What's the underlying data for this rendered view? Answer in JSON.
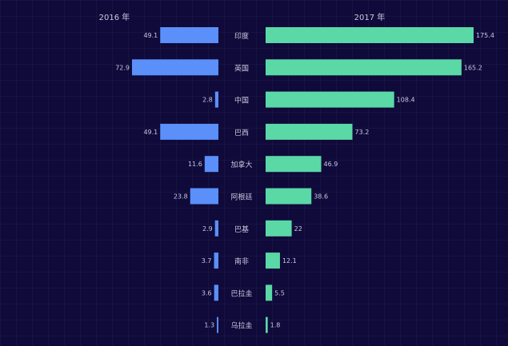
{
  "chart_data": {
    "type": "bar",
    "categories": [
      "印度",
      "英国",
      "中国",
      "巴西",
      "加拿大",
      "阿根廷",
      "巴基",
      "南非",
      "巴拉圭",
      "乌拉圭"
    ],
    "series": [
      {
        "name": "2016 年",
        "values": [
          49.1,
          72.9,
          2.8,
          49.1,
          11.6,
          23.8,
          2.9,
          3.7,
          3.6,
          1.3
        ],
        "labels": [
          "49.1",
          "72.9",
          "2.8",
          "49.1",
          "11.6",
          "23.8",
          "2.9",
          "3.7",
          "3.6",
          "1.3"
        ]
      },
      {
        "name": "2017 年",
        "values": [
          175.4,
          165.2,
          108.4,
          73.2,
          46.9,
          38.6,
          22,
          12.1,
          5.5,
          1.8
        ],
        "labels": [
          "175.4",
          "165.2",
          "108.4",
          "73.2",
          "46.9",
          "38.6",
          "22",
          "12.1",
          "5.5",
          "1.8"
        ]
      }
    ],
    "orientation": "horizontal-butterfly",
    "grid": true,
    "legend": "none"
  },
  "colors": {
    "background": "#0f0a3a",
    "left_bar": "#5b8ff9",
    "right_bar": "#5ad8a6",
    "text": "#c8c8e0"
  }
}
